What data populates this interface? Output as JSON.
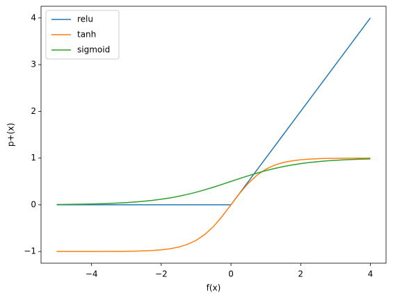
{
  "chart_data": {
    "type": "line",
    "xlabel": "f(x)",
    "ylabel": "p+(x)",
    "x": [
      -5,
      -4.75,
      -4.5,
      -4.25,
      -4,
      -3.75,
      -3.5,
      -3.25,
      -3,
      -2.75,
      -2.5,
      -2.25,
      -2,
      -1.75,
      -1.5,
      -1.25,
      -1,
      -0.75,
      -0.5,
      -0.25,
      0,
      0.25,
      0.5,
      0.75,
      1,
      1.25,
      1.5,
      1.75,
      2,
      2.25,
      2.5,
      2.75,
      3,
      3.25,
      3.5,
      3.75,
      4
    ],
    "series": [
      {
        "name": "relu",
        "color": "#1f77b4",
        "values": [
          0,
          0,
          0,
          0,
          0,
          0,
          0,
          0,
          0,
          0,
          0,
          0,
          0,
          0,
          0,
          0,
          0,
          0,
          0,
          0,
          0,
          0.25,
          0.5,
          0.75,
          1,
          1.25,
          1.5,
          1.75,
          2,
          2.25,
          2.5,
          2.75,
          3,
          3.25,
          3.5,
          3.75,
          4
        ]
      },
      {
        "name": "tanh",
        "color": "#ff7f0e",
        "values": [
          -0.9999,
          -0.9998,
          -0.9998,
          -0.9996,
          -0.9993,
          -0.9989,
          -0.9982,
          -0.997,
          -0.9951,
          -0.9919,
          -0.9866,
          -0.978,
          -0.964,
          -0.9414,
          -0.9051,
          -0.8483,
          -0.7616,
          -0.6351,
          -0.4621,
          -0.2449,
          0,
          0.2449,
          0.4621,
          0.6351,
          0.7616,
          0.8483,
          0.9051,
          0.9414,
          0.964,
          0.978,
          0.9866,
          0.9919,
          0.9951,
          0.997,
          0.9982,
          0.9989,
          0.9993
        ]
      },
      {
        "name": "sigmoid",
        "color": "#2ca02c",
        "values": [
          0.0067,
          0.0086,
          0.011,
          0.0141,
          0.018,
          0.023,
          0.0293,
          0.0374,
          0.0474,
          0.0601,
          0.0759,
          0.0953,
          0.1192,
          0.148,
          0.1824,
          0.2227,
          0.2689,
          0.3208,
          0.3775,
          0.4378,
          0.5,
          0.5622,
          0.6225,
          0.6792,
          0.7311,
          0.7773,
          0.8176,
          0.852,
          0.8808,
          0.9047,
          0.9241,
          0.9399,
          0.9526,
          0.9626,
          0.9707,
          0.977,
          0.982
        ]
      }
    ],
    "xlim": [
      -5.45,
      4.45
    ],
    "xticks": [
      {
        "value": -4,
        "label": "−4"
      },
      {
        "value": -2,
        "label": "−2"
      },
      0,
      2,
      4
    ],
    "ylim": [
      -1.25,
      4.25
    ],
    "yticks": [
      {
        "value": -1,
        "label": "−1"
      },
      0,
      1,
      2,
      3,
      4
    ],
    "grid": false,
    "legend": "upper left"
  }
}
